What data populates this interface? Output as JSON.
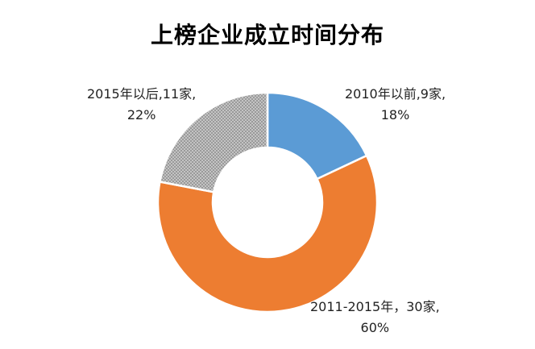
{
  "chart_data": {
    "type": "pie",
    "title": "上榜企业成立时间分布",
    "donut": true,
    "slices": [
      {
        "label": "2010年以前",
        "count_text": "9家",
        "value": 18,
        "percent_text": "18%",
        "color": "#5B9BD5",
        "label_text": "2010年以前,9家,",
        "fill": "solid"
      },
      {
        "label": "2011-2015年",
        "count_text": "30家",
        "value": 60,
        "percent_text": "60%",
        "color": "#ED7D31",
        "label_text": "2011-2015年，30家,",
        "fill": "solid"
      },
      {
        "label": "2015年以后",
        "count_text": "11家",
        "value": 22,
        "percent_text": "22%",
        "color": "#A5A5A5",
        "label_text": "2015年以后,11家,",
        "fill": "pattern"
      }
    ]
  }
}
